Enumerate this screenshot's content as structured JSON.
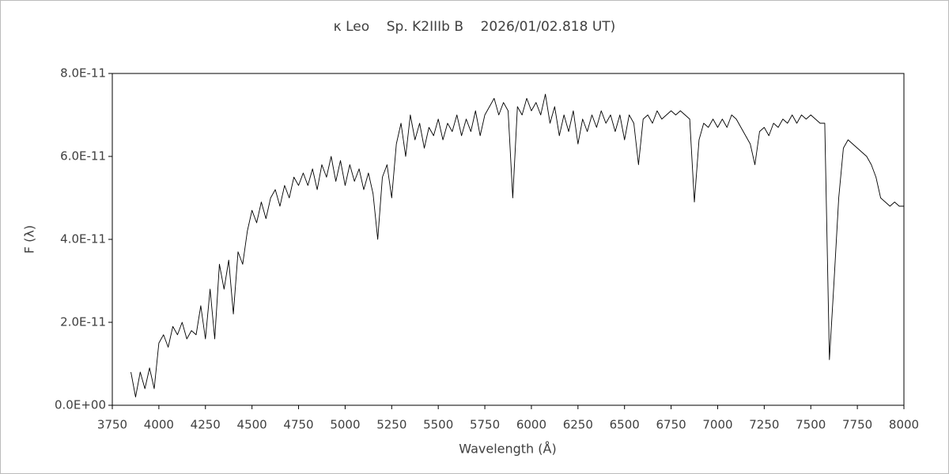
{
  "chart_data": {
    "type": "line",
    "title": "κ Leo    Sp. K2IIIb B    2026/01/02.818 UT)",
    "x_label": "Wavelength (Å)",
    "y_label": "F (λ)",
    "x": [
      3850,
      3875,
      3900,
      3925,
      3950,
      3975,
      4000,
      4025,
      4050,
      4075,
      4100,
      4125,
      4150,
      4175,
      4200,
      4225,
      4250,
      4275,
      4300,
      4325,
      4350,
      4375,
      4400,
      4425,
      4450,
      4475,
      4500,
      4525,
      4550,
      4575,
      4600,
      4625,
      4650,
      4675,
      4700,
      4725,
      4750,
      4775,
      4800,
      4825,
      4850,
      4875,
      4900,
      4925,
      4950,
      4975,
      5000,
      5025,
      5050,
      5075,
      5100,
      5125,
      5150,
      5175,
      5200,
      5225,
      5250,
      5275,
      5300,
      5325,
      5350,
      5375,
      5400,
      5425,
      5450,
      5475,
      5500,
      5525,
      5550,
      5575,
      5600,
      5625,
      5650,
      5675,
      5700,
      5725,
      5750,
      5775,
      5800,
      5825,
      5850,
      5875,
      5900,
      5925,
      5950,
      5975,
      6000,
      6025,
      6050,
      6075,
      6100,
      6125,
      6150,
      6175,
      6200,
      6225,
      6250,
      6275,
      6300,
      6325,
      6350,
      6375,
      6400,
      6425,
      6450,
      6475,
      6500,
      6525,
      6550,
      6575,
      6600,
      6625,
      6650,
      6675,
      6700,
      6725,
      6750,
      6775,
      6800,
      6825,
      6850,
      6875,
      6900,
      6925,
      6950,
      6975,
      7000,
      7025,
      7050,
      7075,
      7100,
      7125,
      7150,
      7175,
      7200,
      7225,
      7250,
      7275,
      7300,
      7325,
      7350,
      7375,
      7400,
      7425,
      7450,
      7475,
      7500,
      7525,
      7550,
      7575,
      7600,
      7625,
      7650,
      7675,
      7700,
      7725,
      7750,
      7775,
      7800,
      7825,
      7850,
      7875,
      7900,
      7925,
      7950,
      7975,
      8000
    ],
    "series": [
      {
        "color": "#000000",
        "values": [
          8e-12,
          2e-12,
          8e-12,
          4e-12,
          9e-12,
          4e-12,
          1.5e-11,
          1.7e-11,
          1.4e-11,
          1.9e-11,
          1.7e-11,
          2e-11,
          1.6e-11,
          1.8e-11,
          1.7e-11,
          2.4e-11,
          1.6e-11,
          2.8e-11,
          1.6e-11,
          3.4e-11,
          2.8e-11,
          3.5e-11,
          2.2e-11,
          3.7e-11,
          3.4e-11,
          4.2e-11,
          4.7e-11,
          4.4e-11,
          4.9e-11,
          4.5e-11,
          5e-11,
          5.2e-11,
          4.8e-11,
          5.3e-11,
          5e-11,
          5.5e-11,
          5.3e-11,
          5.6e-11,
          5.3e-11,
          5.7e-11,
          5.2e-11,
          5.8e-11,
          5.5e-11,
          6e-11,
          5.4e-11,
          5.9e-11,
          5.3e-11,
          5.8e-11,
          5.4e-11,
          5.7e-11,
          5.2e-11,
          5.6e-11,
          5.1e-11,
          4e-11,
          5.5e-11,
          5.8e-11,
          5e-11,
          6.3e-11,
          6.8e-11,
          6e-11,
          7e-11,
          6.4e-11,
          6.8e-11,
          6.2e-11,
          6.7e-11,
          6.5e-11,
          6.9e-11,
          6.4e-11,
          6.8e-11,
          6.6e-11,
          7e-11,
          6.5e-11,
          6.9e-11,
          6.6e-11,
          7.1e-11,
          6.5e-11,
          7e-11,
          7.2e-11,
          7.4e-11,
          7e-11,
          7.3e-11,
          7.1e-11,
          5e-11,
          7.2e-11,
          7e-11,
          7.4e-11,
          7.1e-11,
          7.3e-11,
          7e-11,
          7.5e-11,
          6.8e-11,
          7.2e-11,
          6.5e-11,
          7e-11,
          6.6e-11,
          7.1e-11,
          6.3e-11,
          6.9e-11,
          6.6e-11,
          7e-11,
          6.7e-11,
          7.1e-11,
          6.8e-11,
          7e-11,
          6.6e-11,
          7e-11,
          6.4e-11,
          7e-11,
          6.8e-11,
          5.8e-11,
          6.9e-11,
          7e-11,
          6.8e-11,
          7.1e-11,
          6.9e-11,
          7e-11,
          7.1e-11,
          7e-11,
          7.1e-11,
          7e-11,
          6.9e-11,
          4.9e-11,
          6.4e-11,
          6.8e-11,
          6.7e-11,
          6.9e-11,
          6.7e-11,
          6.9e-11,
          6.7e-11,
          7e-11,
          6.9e-11,
          6.7e-11,
          6.5e-11,
          6.3e-11,
          5.8e-11,
          6.6e-11,
          6.7e-11,
          6.5e-11,
          6.8e-11,
          6.7e-11,
          6.9e-11,
          6.8e-11,
          7e-11,
          6.8e-11,
          7e-11,
          6.9e-11,
          7e-11,
          6.9e-11,
          6.8e-11,
          6.8e-11,
          1.1e-11,
          3e-11,
          5e-11,
          6.2e-11,
          6.4e-11,
          6.3e-11,
          6.2e-11,
          6.1e-11,
          6e-11,
          5.8e-11,
          5.5e-11,
          5e-11,
          4.9e-11,
          4.8e-11,
          4.9e-11,
          4.8e-11,
          4.8e-11
        ]
      }
    ],
    "xlim": [
      3750,
      8000
    ],
    "xticks": [
      3750,
      4000,
      4250,
      4500,
      4750,
      5000,
      5250,
      5500,
      5750,
      6000,
      6250,
      6500,
      6750,
      7000,
      7250,
      7500,
      7750,
      8000
    ],
    "ylim": [
      0,
      8e-11
    ],
    "yticks": [
      {
        "value": 0,
        "label": "0.0E+00"
      },
      {
        "value": 2e-11,
        "label": "2.0E-11"
      },
      {
        "value": 4e-11,
        "label": "4.0E-11"
      },
      {
        "value": 6e-11,
        "label": "6.0E-11"
      },
      {
        "value": 8e-11,
        "label": "8.0E-11"
      }
    ],
    "grid": false
  }
}
